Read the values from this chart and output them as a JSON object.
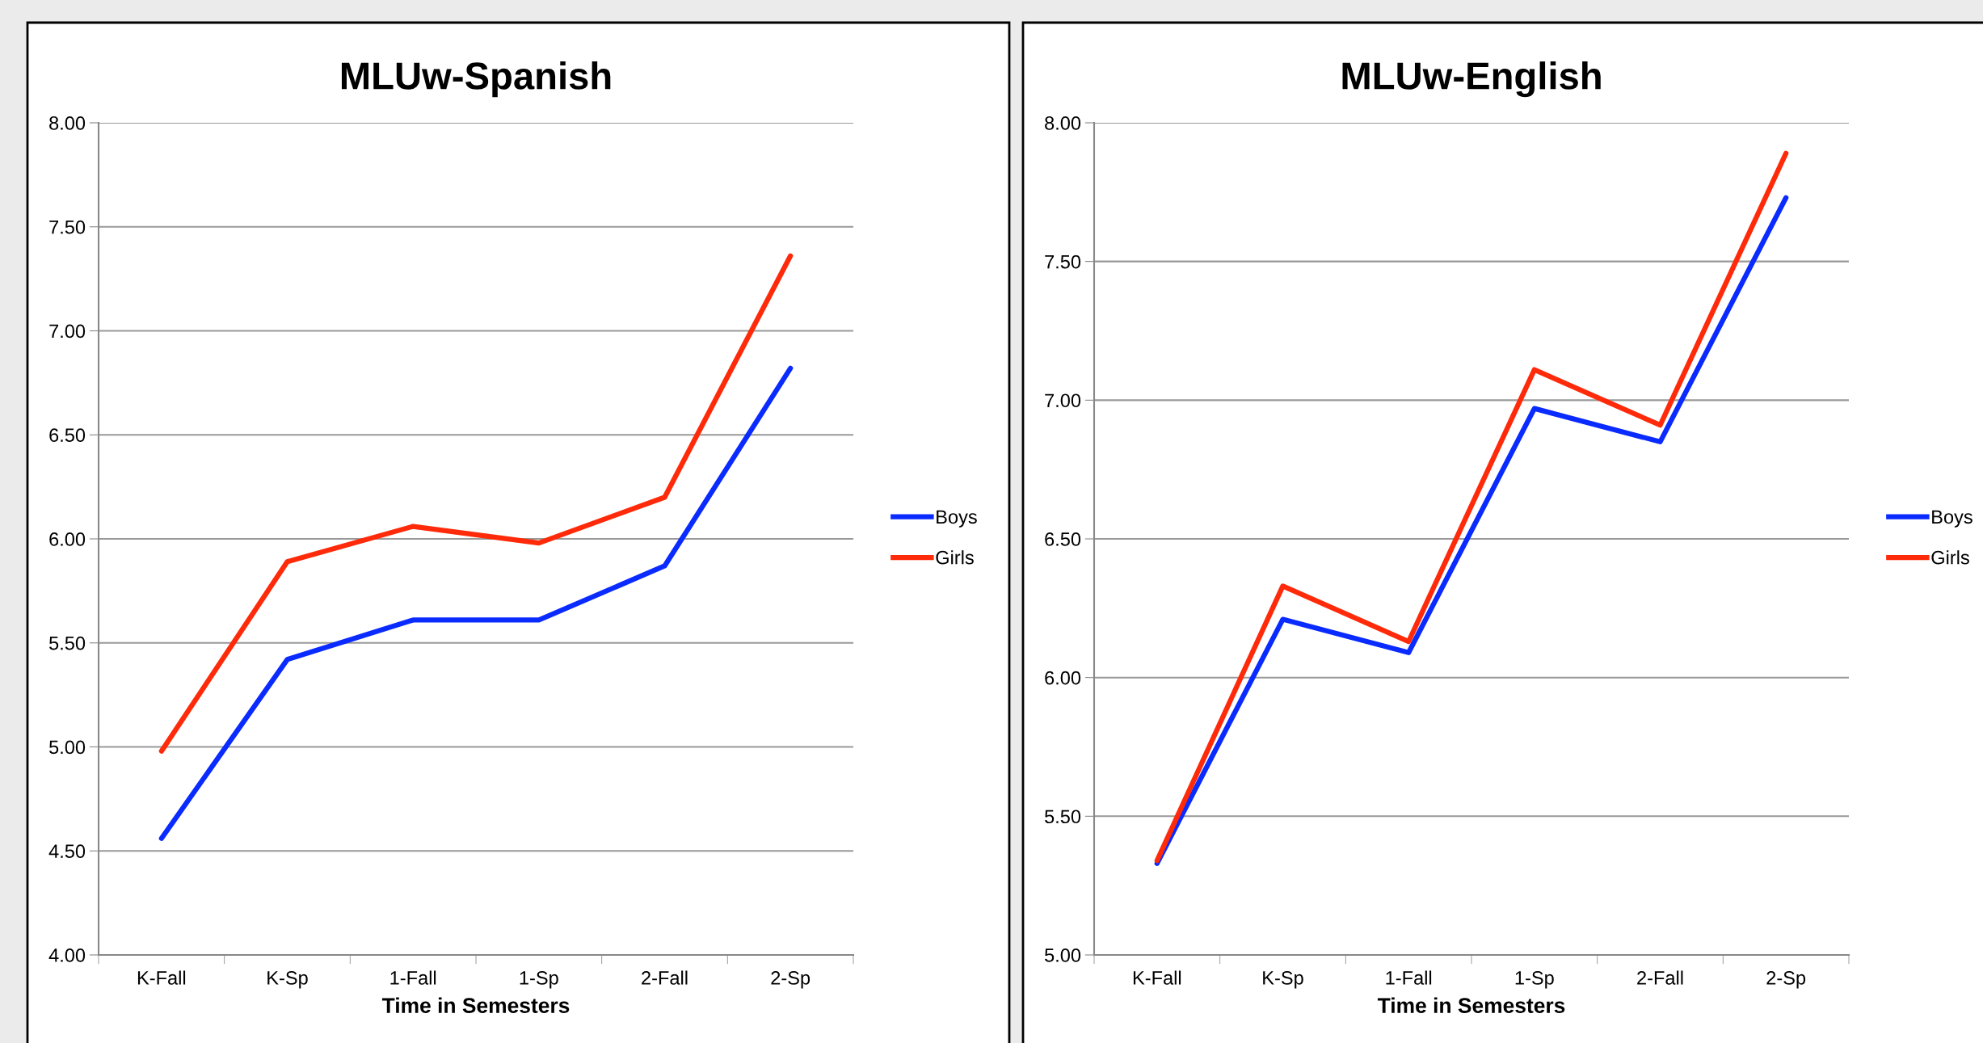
{
  "chart_data": [
    {
      "type": "line",
      "title": "MLUw-Spanish",
      "xlabel": "Time in Semesters",
      "categories": [
        "K-Fall",
        "K-Sp",
        "1-Fall",
        "1-Sp",
        "2-Fall",
        "2-Sp"
      ],
      "series": [
        {
          "name": "Boys",
          "color": "#0a2bff",
          "values": [
            4.56,
            5.42,
            5.61,
            5.61,
            5.87,
            6.82
          ]
        },
        {
          "name": "Girls",
          "color": "#ff2a0a",
          "values": [
            4.98,
            5.89,
            6.06,
            5.98,
            6.2,
            7.36
          ]
        }
      ],
      "ylim": [
        4,
        8
      ],
      "yticks": [
        {
          "value": 4,
          "label": "4.00"
        },
        {
          "value": 4.5,
          "label": "4.50"
        },
        {
          "value": 5,
          "label": "5.00"
        },
        {
          "value": 5.5,
          "label": "5.50"
        },
        {
          "value": 6,
          "label": "6.00"
        },
        {
          "value": 6.5,
          "label": "6.50"
        },
        {
          "value": 7,
          "label": "7.00"
        },
        {
          "value": 7.5,
          "label": "7.50"
        },
        {
          "value": 8,
          "label": "8.00"
        }
      ],
      "grid": "y",
      "legend": "right",
      "marker": "none",
      "line_style": "solid"
    },
    {
      "type": "line",
      "title": "MLUw-English",
      "xlabel": "Time in Semesters",
      "categories": [
        "K-Fall",
        "K-Sp",
        "1-Fall",
        "1-Sp",
        "2-Fall",
        "2-Sp"
      ],
      "series": [
        {
          "name": "Boys",
          "color": "#0a2bff",
          "values": [
            5.33,
            6.21,
            6.09,
            6.97,
            6.85,
            7.73
          ]
        },
        {
          "name": "Girls",
          "color": "#ff2a0a",
          "values": [
            5.34,
            6.33,
            6.13,
            7.11,
            6.91,
            7.89
          ]
        }
      ],
      "ylim": [
        5,
        8
      ],
      "yticks": [
        {
          "value": 5,
          "label": "5.00"
        },
        {
          "value": 5.5,
          "label": "5.50"
        },
        {
          "value": 6,
          "label": "6.00"
        },
        {
          "value": 6.5,
          "label": "6.50"
        },
        {
          "value": 7,
          "label": "7.00"
        },
        {
          "value": 7.5,
          "label": "7.50"
        },
        {
          "value": 8,
          "label": "8.00"
        }
      ],
      "grid": "y",
      "legend": "right",
      "marker": "none",
      "line_style": "solid"
    }
  ]
}
